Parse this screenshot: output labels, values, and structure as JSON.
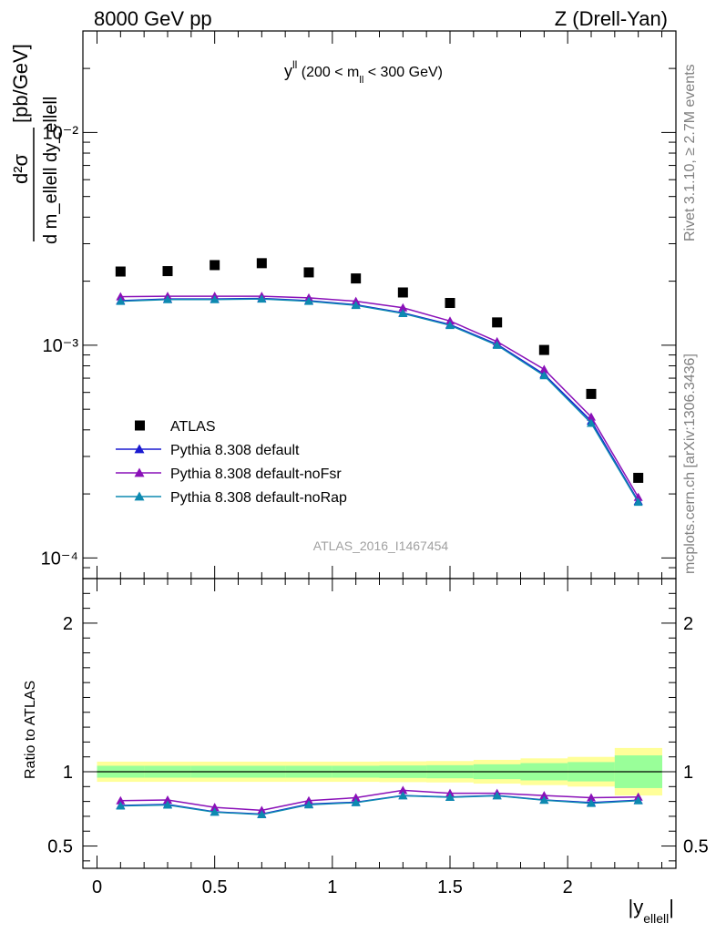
{
  "header": {
    "left": "8000 GeV pp",
    "right": "Z (Drell-Yan)"
  },
  "side_labels": {
    "rivet": "Rivet 3.1.10, ≥ 2.7M events",
    "mcplots": "mcplots.cern.ch [arXiv:1306.3436]"
  },
  "chart_data": {
    "type": "line",
    "title": "y^ll (200 < m_ll < 300 GeV)",
    "title_main": "y",
    "title_sup": "ll",
    "title_pre": " (200 < m",
    "title_sub": "ll",
    "title_post": " < 300 GeV)",
    "watermark": "ATLAS_2016_I1467454",
    "xlabel": "|y_ellell|",
    "xlabel_main": "|y",
    "xlabel_sub": "ellell",
    "xlabel_end": "|",
    "ylabel_unit": "[pb/GeV]",
    "ylabel_num": "d²σ",
    "ylabel_den": "d m_ellell dy_ellell",
    "ratio_ylabel": "Ratio to ATLAS",
    "xlim": [
      -0.06,
      2.46
    ],
    "ylim": [
      8e-05,
      0.03
    ],
    "y_scale": "log",
    "ratio_ylim": [
      0.35,
      2.3
    ],
    "x_ticks": [
      "0",
      "0.5",
      "1",
      "1.5",
      "2"
    ],
    "y_tick_labels": [
      "10⁻⁴",
      "10⁻³",
      "10⁻²"
    ],
    "ratio_tick_labels": [
      "0.5",
      "1",
      "2"
    ],
    "legend_position": "lower-left",
    "x": [
      0.1,
      0.3,
      0.5,
      0.7,
      0.9,
      1.1,
      1.3,
      1.5,
      1.7,
      1.9,
      2.1,
      2.3
    ],
    "series": [
      {
        "name": "ATLAS",
        "color": "#000000",
        "marker": "square",
        "values": [
          0.00222,
          0.00223,
          0.00238,
          0.00243,
          0.0022,
          0.00206,
          0.00177,
          0.00158,
          0.00128,
          0.00095,
          0.00059,
          0.000238
        ]
      },
      {
        "name": "Pythia 8.308 default",
        "color": "#1a1ad0",
        "marker": "triangle",
        "values": [
          0.00162,
          0.00165,
          0.00165,
          0.00166,
          0.00162,
          0.00155,
          0.00142,
          0.00125,
          0.00101,
          0.00073,
          0.00044,
          0.000185
        ]
      },
      {
        "name": "Pythia 8.308 default-noFsr",
        "color": "#8a10b8",
        "marker": "triangle",
        "values": [
          0.00169,
          0.0017,
          0.0017,
          0.0017,
          0.00167,
          0.00161,
          0.0015,
          0.0013,
          0.00104,
          0.00077,
          0.00046,
          0.000193
        ]
      },
      {
        "name": "Pythia 8.308 default-noRap",
        "color": "#0d8ab0",
        "marker": "triangle",
        "values": [
          0.00161,
          0.00164,
          0.00164,
          0.00165,
          0.00161,
          0.00154,
          0.00141,
          0.00124,
          0.001,
          0.00072,
          0.00043,
          0.000183
        ]
      }
    ],
    "ratio_series": [
      {
        "name": "Pythia 8.308 default",
        "values": [
          0.773,
          0.78,
          0.73,
          0.715,
          0.782,
          0.795,
          0.84,
          0.83,
          0.84,
          0.81,
          0.792,
          0.808
        ]
      },
      {
        "name": "Pythia 8.308 default-noFsr",
        "values": [
          0.805,
          0.81,
          0.76,
          0.74,
          0.805,
          0.825,
          0.875,
          0.855,
          0.855,
          0.84,
          0.825,
          0.83
        ]
      },
      {
        "name": "Pythia 8.308 default-noRap",
        "values": [
          0.77,
          0.776,
          0.728,
          0.712,
          0.778,
          0.792,
          0.838,
          0.828,
          0.838,
          0.808,
          0.788,
          0.805
        ]
      }
    ],
    "band_edges": [
      0.0,
      0.2,
      0.4,
      0.6,
      0.8,
      1.0,
      1.2,
      1.4,
      1.6,
      1.8,
      2.0,
      2.2,
      2.4
    ],
    "band_inner_halfwidth": [
      0.04,
      0.04,
      0.04,
      0.04,
      0.04,
      0.04,
      0.042,
      0.044,
      0.05,
      0.058,
      0.065,
      0.11
    ],
    "band_outer_halfwidth": [
      0.068,
      0.068,
      0.068,
      0.068,
      0.068,
      0.068,
      0.07,
      0.072,
      0.08,
      0.09,
      0.1,
      0.16
    ],
    "band_inner_color": "#99ff99",
    "band_outer_color": "#ffff99"
  }
}
